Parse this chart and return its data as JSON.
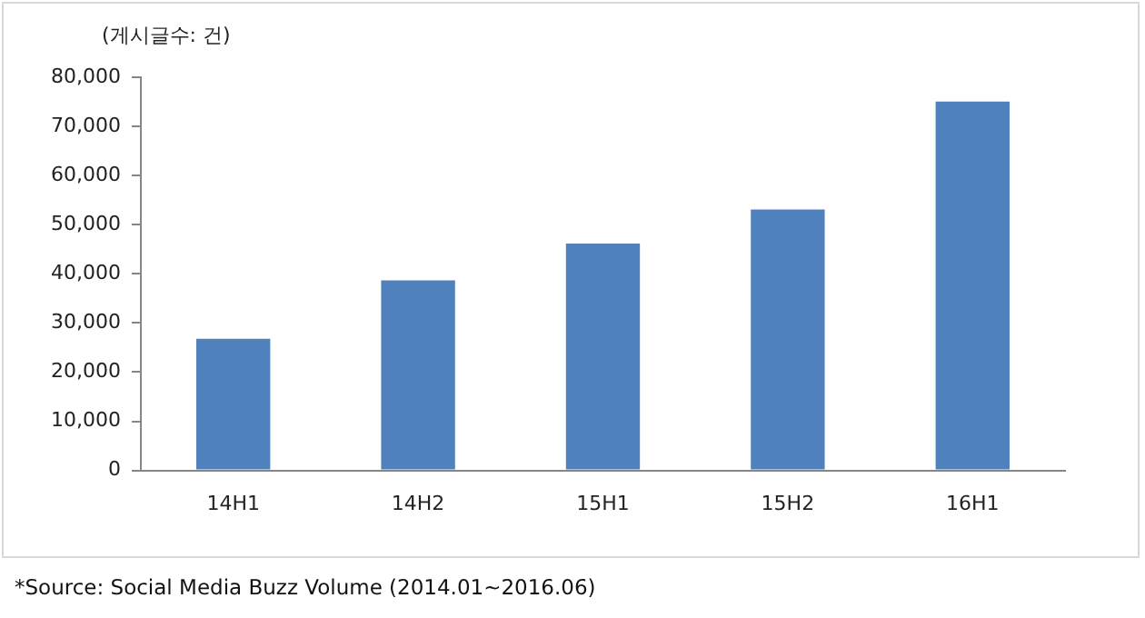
{
  "chart_data": {
    "type": "bar",
    "ylabel": "(게시글수: 건)",
    "categories": [
      "14H1",
      "14H2",
      "15H1",
      "15H2",
      "16H1"
    ],
    "values": [
      26800,
      38700,
      46200,
      53100,
      75100
    ],
    "color": "#4f81bd",
    "ylim": [
      0,
      80000
    ],
    "yticks": [
      {
        "value": 0,
        "label": "0"
      },
      {
        "value": 10000,
        "label": "10,000"
      },
      {
        "value": 20000,
        "label": "20,000"
      },
      {
        "value": 30000,
        "label": "30,000"
      },
      {
        "value": 40000,
        "label": "40,000"
      },
      {
        "value": 50000,
        "label": "50,000"
      },
      {
        "value": 60000,
        "label": "60,000"
      },
      {
        "value": 70000,
        "label": "70,000"
      },
      {
        "value": 80000,
        "label": "80,000"
      }
    ],
    "grid": false,
    "annotations": [
      "*Source: Social Media Buzz Volume (2014.01~2016.06)"
    ]
  }
}
